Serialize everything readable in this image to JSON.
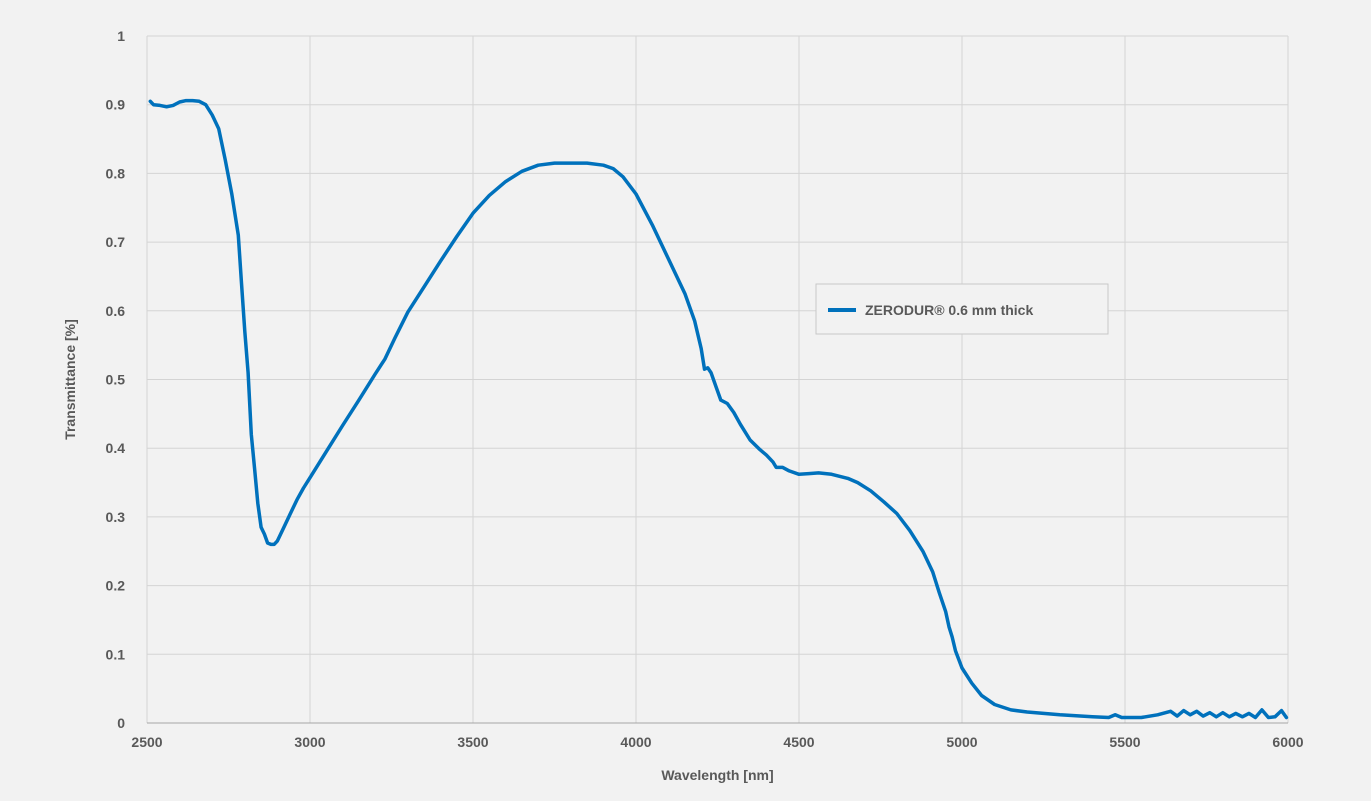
{
  "chart_data": {
    "type": "line",
    "title": "",
    "xlabel": "Wavelength [nm]",
    "ylabel": "Transmittance [%]",
    "xlim": [
      2500,
      6000
    ],
    "ylim": [
      0,
      1
    ],
    "x_ticks": [
      2500,
      3000,
      3500,
      4000,
      4500,
      5000,
      5500,
      6000
    ],
    "y_ticks": [
      "0",
      "0.1",
      "0.2",
      "0.3",
      "0.4",
      "0.5",
      "0.6",
      "0.7",
      "0.8",
      "0.9",
      "1"
    ],
    "grid": true,
    "legend_position": "right",
    "series": [
      {
        "name": "ZERODUR® 0.6 mm thick",
        "color": "#0071bc",
        "points": [
          [
            2510,
            0.905
          ],
          [
            2520,
            0.9
          ],
          [
            2540,
            0.899
          ],
          [
            2560,
            0.897
          ],
          [
            2580,
            0.899
          ],
          [
            2600,
            0.904
          ],
          [
            2620,
            0.906
          ],
          [
            2640,
            0.906
          ],
          [
            2660,
            0.905
          ],
          [
            2680,
            0.9
          ],
          [
            2700,
            0.885
          ],
          [
            2720,
            0.865
          ],
          [
            2740,
            0.82
          ],
          [
            2760,
            0.77
          ],
          [
            2780,
            0.71
          ],
          [
            2790,
            0.64
          ],
          [
            2800,
            0.57
          ],
          [
            2810,
            0.51
          ],
          [
            2820,
            0.42
          ],
          [
            2830,
            0.37
          ],
          [
            2840,
            0.32
          ],
          [
            2850,
            0.285
          ],
          [
            2860,
            0.275
          ],
          [
            2870,
            0.262
          ],
          [
            2880,
            0.26
          ],
          [
            2890,
            0.26
          ],
          [
            2900,
            0.265
          ],
          [
            2920,
            0.285
          ],
          [
            2940,
            0.305
          ],
          [
            2960,
            0.325
          ],
          [
            2980,
            0.342
          ],
          [
            3000,
            0.357
          ],
          [
            3050,
            0.395
          ],
          [
            3100,
            0.433
          ],
          [
            3150,
            0.47
          ],
          [
            3200,
            0.508
          ],
          [
            3230,
            0.53
          ],
          [
            3260,
            0.56
          ],
          [
            3300,
            0.598
          ],
          [
            3350,
            0.635
          ],
          [
            3400,
            0.672
          ],
          [
            3450,
            0.708
          ],
          [
            3500,
            0.742
          ],
          [
            3550,
            0.768
          ],
          [
            3600,
            0.788
          ],
          [
            3650,
            0.803
          ],
          [
            3700,
            0.812
          ],
          [
            3750,
            0.815
          ],
          [
            3800,
            0.815
          ],
          [
            3850,
            0.815
          ],
          [
            3900,
            0.812
          ],
          [
            3930,
            0.807
          ],
          [
            3960,
            0.795
          ],
          [
            4000,
            0.77
          ],
          [
            4050,
            0.725
          ],
          [
            4100,
            0.675
          ],
          [
            4150,
            0.625
          ],
          [
            4180,
            0.585
          ],
          [
            4200,
            0.545
          ],
          [
            4210,
            0.515
          ],
          [
            4220,
            0.517
          ],
          [
            4230,
            0.51
          ],
          [
            4245,
            0.49
          ],
          [
            4260,
            0.47
          ],
          [
            4280,
            0.465
          ],
          [
            4300,
            0.452
          ],
          [
            4320,
            0.435
          ],
          [
            4350,
            0.412
          ],
          [
            4380,
            0.398
          ],
          [
            4400,
            0.39
          ],
          [
            4420,
            0.38
          ],
          [
            4430,
            0.372
          ],
          [
            4450,
            0.372
          ],
          [
            4470,
            0.367
          ],
          [
            4500,
            0.362
          ],
          [
            4530,
            0.363
          ],
          [
            4560,
            0.364
          ],
          [
            4600,
            0.362
          ],
          [
            4650,
            0.356
          ],
          [
            4680,
            0.35
          ],
          [
            4720,
            0.338
          ],
          [
            4760,
            0.322
          ],
          [
            4800,
            0.305
          ],
          [
            4840,
            0.28
          ],
          [
            4880,
            0.25
          ],
          [
            4910,
            0.22
          ],
          [
            4930,
            0.19
          ],
          [
            4950,
            0.162
          ],
          [
            4960,
            0.14
          ],
          [
            4970,
            0.125
          ],
          [
            4980,
            0.105
          ],
          [
            5000,
            0.08
          ],
          [
            5030,
            0.058
          ],
          [
            5060,
            0.04
          ],
          [
            5100,
            0.027
          ],
          [
            5150,
            0.019
          ],
          [
            5200,
            0.016
          ],
          [
            5300,
            0.012
          ],
          [
            5400,
            0.009
          ],
          [
            5450,
            0.008
          ],
          [
            5470,
            0.012
          ],
          [
            5490,
            0.008
          ],
          [
            5550,
            0.008
          ],
          [
            5600,
            0.012
          ],
          [
            5640,
            0.017
          ],
          [
            5660,
            0.01
          ],
          [
            5680,
            0.018
          ],
          [
            5700,
            0.012
          ],
          [
            5720,
            0.017
          ],
          [
            5740,
            0.01
          ],
          [
            5760,
            0.015
          ],
          [
            5780,
            0.009
          ],
          [
            5800,
            0.015
          ],
          [
            5820,
            0.009
          ],
          [
            5840,
            0.014
          ],
          [
            5860,
            0.009
          ],
          [
            5880,
            0.014
          ],
          [
            5900,
            0.008
          ],
          [
            5920,
            0.019
          ],
          [
            5940,
            0.008
          ],
          [
            5960,
            0.009
          ],
          [
            5980,
            0.018
          ],
          [
            5995,
            0.008
          ]
        ]
      }
    ]
  }
}
